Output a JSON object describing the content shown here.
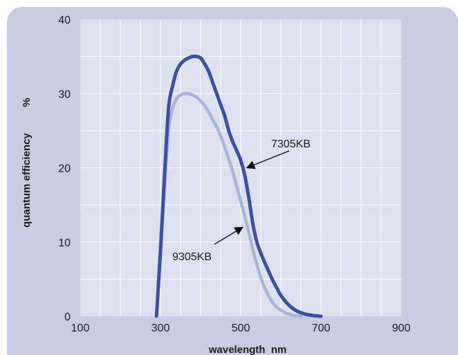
{
  "colors": {
    "panel_bg": "#c9cde3",
    "plot_bg": "#dde0ef",
    "grid": "#ffffff",
    "series_7305KB": "#3d4f9e",
    "series_9305KB": "#aab4da",
    "arrow": "#111111"
  },
  "chart_data": {
    "type": "line",
    "xlabel": "wavelength  nm",
    "ylabel": "quantum efficiency",
    "yunit": "%",
    "xlim": [
      100,
      900
    ],
    "ylim": [
      0,
      40
    ],
    "xticks": [
      100,
      300,
      500,
      700,
      900
    ],
    "yticks": [
      0,
      10,
      20,
      30,
      40
    ],
    "grid": true,
    "series": [
      {
        "name": "7305KB",
        "x": [
          290,
          300,
          310,
          320,
          330,
          340,
          350,
          360,
          370,
          380,
          390,
          400,
          410,
          420,
          430,
          440,
          450,
          460,
          470,
          480,
          490,
          500,
          510,
          520,
          530,
          540,
          550,
          560,
          570,
          580,
          590,
          600,
          620,
          640,
          660,
          680,
          700
        ],
        "y": [
          0,
          9,
          19,
          28,
          31,
          33,
          34,
          34.5,
          34.8,
          35,
          35,
          34.8,
          34,
          33,
          31.5,
          30,
          28.5,
          27,
          25,
          23.5,
          22.3,
          21,
          19,
          16,
          12.5,
          10,
          8.5,
          7.2,
          6,
          4.8,
          3.8,
          2.8,
          1.5,
          0.7,
          0.3,
          0.1,
          0
        ]
      },
      {
        "name": "9305KB",
        "x": [
          290,
          300,
          310,
          320,
          330,
          340,
          350,
          360,
          370,
          380,
          390,
          400,
          410,
          420,
          430,
          440,
          450,
          460,
          470,
          480,
          490,
          500,
          510,
          520,
          530,
          540,
          550,
          560,
          570,
          580,
          590,
          600,
          610,
          620,
          630,
          640,
          650
        ],
        "y": [
          0,
          8,
          17,
          25,
          28,
          29.3,
          29.8,
          30,
          30,
          29.8,
          29.5,
          29,
          28.4,
          27.5,
          26.5,
          25.5,
          24.3,
          22.8,
          21.2,
          19.5,
          17.5,
          15.5,
          13.5,
          11.3,
          9,
          7,
          5.2,
          3.8,
          2.7,
          1.8,
          1.2,
          0.8,
          0.5,
          0.3,
          0.1,
          0.05,
          0
        ]
      }
    ],
    "annotations": [
      {
        "text": "7305KB",
        "series": "7305KB",
        "target": [
          515,
          20
        ]
      },
      {
        "text": "9305KB",
        "series": "9305KB",
        "target": [
          505,
          12
        ]
      }
    ]
  }
}
